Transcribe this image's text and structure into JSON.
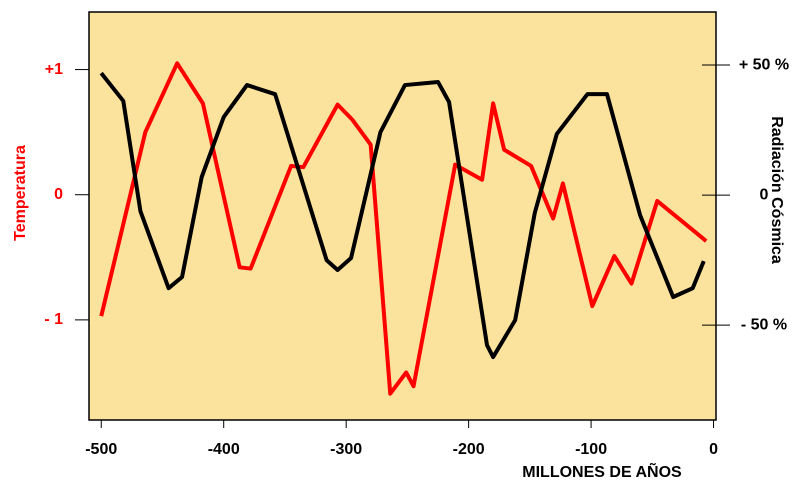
{
  "chart_data": {
    "type": "line",
    "xlabel": "MILLONES DE AÑOS",
    "ylabel": "Temperatura",
    "y2label": "Radiación Cósmica",
    "xlim": [
      -510,
      2
    ],
    "xticks": [
      -500,
      -400,
      -300,
      -200,
      -100,
      0
    ],
    "ylim": [
      -1.8,
      1.46
    ],
    "yticks": [
      {
        "value": 1,
        "label": "+1"
      },
      0,
      {
        "value": -1,
        "label": "- 1"
      }
    ],
    "y2lim": [
      -86.5,
      70.4
    ],
    "y2ticks": [
      {
        "value": 50,
        "label": "+ 50 %"
      },
      0,
      {
        "value": -50,
        "label": "- 50 %"
      }
    ],
    "series": [
      {
        "color": "#ff0000",
        "x": [
          -500,
          -464,
          -438,
          -417,
          -387,
          -378,
          -345,
          -335,
          -307,
          -295,
          -280,
          -264,
          -251,
          -245,
          -211,
          -189,
          -180,
          -171,
          -149,
          -131,
          -123,
          -99,
          -81,
          -67,
          -46,
          -6
        ],
        "values": [
          -0.97,
          0.5,
          1.05,
          0.73,
          -0.58,
          -0.59,
          0.23,
          0.22,
          0.72,
          0.6,
          0.4,
          -1.59,
          -1.42,
          -1.53,
          0.24,
          0.12,
          0.73,
          0.36,
          0.23,
          -0.19,
          0.09,
          -0.89,
          -0.49,
          -0.71,
          -0.05,
          -0.37
        ]
      },
      {
        "color": "#000000",
        "axis": "y2",
        "x": [
          -500,
          -482,
          -468,
          -445,
          -434,
          -418,
          -400,
          -381,
          -358,
          -316,
          -307,
          -296,
          -272,
          -252,
          -225,
          -216,
          -185,
          -180,
          -162,
          -146,
          -128,
          -103,
          -87,
          -60,
          -33,
          -17,
          -8
        ],
        "values": [
          46.9,
          36.2,
          -6.2,
          -35.8,
          -31.5,
          6.9,
          30,
          42.3,
          38.8,
          -25,
          -28.8,
          -24.2,
          24.2,
          42.3,
          43.5,
          35.8,
          -57.7,
          -62.3,
          -48.1,
          -6.9,
          23.5,
          38.8,
          38.8,
          -7.7,
          -39.2,
          -35.8,
          -25.4
        ]
      }
    ]
  }
}
